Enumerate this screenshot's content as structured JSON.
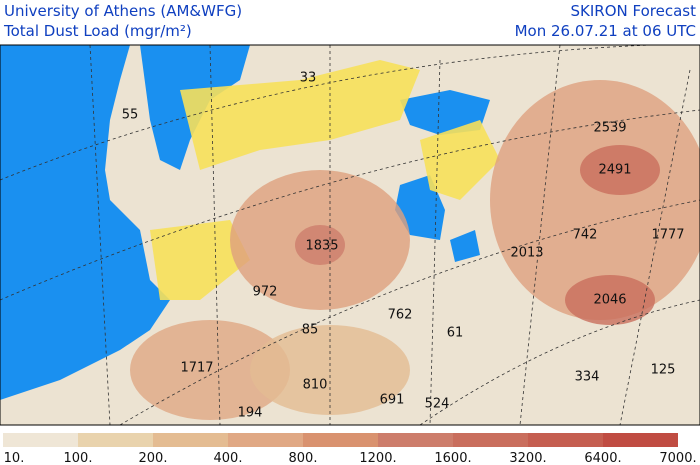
{
  "header": {
    "institution": "University of Athens (AM&WFG)",
    "product": "Total Dust Load (mgr/m²)",
    "model": "SKIRON Forecast",
    "time": "Mon 26.07.21 at 06 UTC"
  },
  "map_labels": [
    33,
    55,
    2539,
    2491,
    1835,
    2013,
    742,
    1777,
    972,
    85,
    762,
    61,
    2046,
    1717,
    810,
    334,
    125,
    691,
    524,
    194
  ],
  "colorbar": {
    "labels": [
      "10.",
      "100.",
      "200.",
      "400.",
      "800.",
      "1200.",
      "1600.",
      "3200.",
      "6400.",
      "7000."
    ],
    "colors": [
      "#efe6d6",
      "#e9d3ad",
      "#e4bc92",
      "#e0a884",
      "#d9926f",
      "#cd7d6b",
      "#c96e5d",
      "#c55e50",
      "#c04c42"
    ]
  }
}
